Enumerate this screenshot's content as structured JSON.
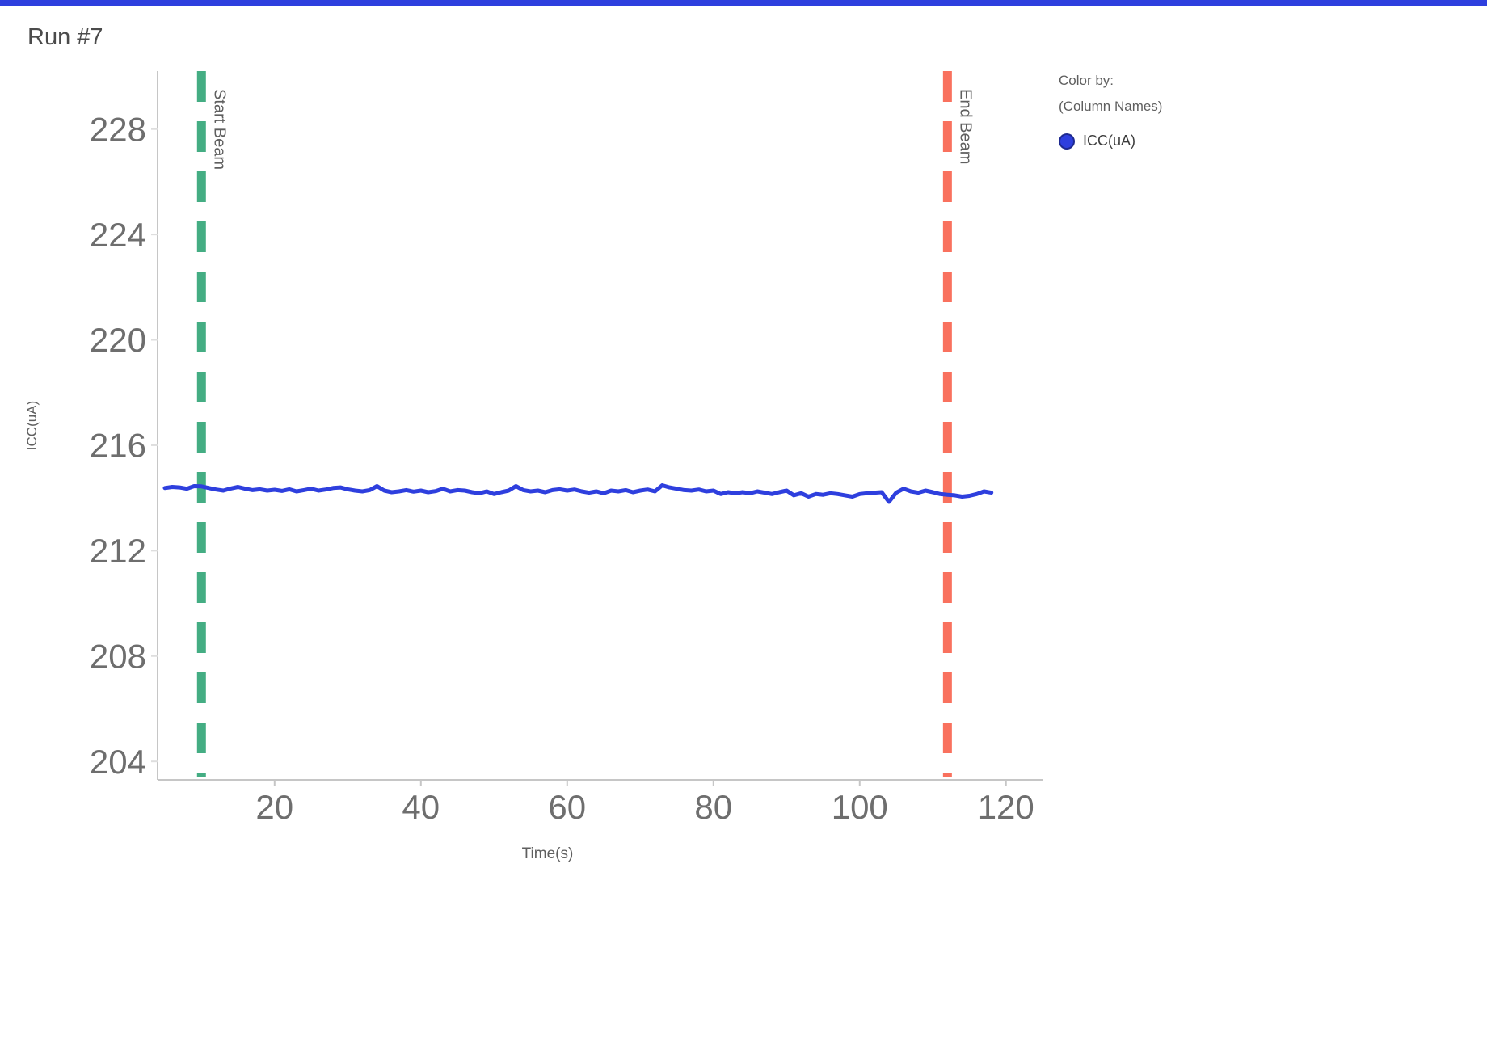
{
  "page": {
    "title": "Run #7",
    "accent_color": "#2e3fde"
  },
  "legend": {
    "color_by_label": "Color by:",
    "column_names_label": "(Column Names)",
    "items": [
      {
        "label": "ICC(uA)",
        "color": "#2e3fde"
      }
    ]
  },
  "chart_data": {
    "type": "line",
    "title": "Run #7",
    "xlabel": "Time(s)",
    "ylabel": "ICC(uA)",
    "xlim": [
      4,
      125
    ],
    "ylim": [
      203.3,
      230.2
    ],
    "xticks": [
      20,
      40,
      60,
      80,
      100,
      120
    ],
    "yticks": [
      204,
      208,
      212,
      216,
      220,
      224,
      228
    ],
    "grid": false,
    "legend_position": "top-right",
    "series": [
      {
        "name": "ICC(uA)",
        "color": "#2e3fde",
        "x": [
          5,
          6,
          7,
          8,
          9,
          10,
          11,
          12,
          13,
          14,
          15,
          16,
          17,
          18,
          19,
          20,
          21,
          22,
          23,
          24,
          25,
          26,
          27,
          28,
          29,
          30,
          31,
          32,
          33,
          34,
          35,
          36,
          37,
          38,
          39,
          40,
          41,
          42,
          43,
          44,
          45,
          46,
          47,
          48,
          49,
          50,
          51,
          52,
          53,
          54,
          55,
          56,
          57,
          58,
          59,
          60,
          61,
          62,
          63,
          64,
          65,
          66,
          67,
          68,
          69,
          70,
          71,
          72,
          73,
          74,
          75,
          76,
          77,
          78,
          79,
          80,
          81,
          82,
          83,
          84,
          85,
          86,
          87,
          88,
          89,
          90,
          91,
          92,
          93,
          94,
          95,
          96,
          97,
          98,
          99,
          100,
          101,
          102,
          103,
          104,
          105,
          106,
          107,
          108,
          109,
          110,
          111,
          112,
          113,
          114,
          115,
          116,
          117,
          118
        ],
        "y": [
          214.38,
          214.42,
          214.4,
          214.35,
          214.45,
          214.44,
          214.38,
          214.32,
          214.28,
          214.36,
          214.42,
          214.35,
          214.3,
          214.33,
          214.28,
          214.31,
          214.27,
          214.33,
          214.25,
          214.3,
          214.35,
          214.28,
          214.32,
          214.38,
          214.4,
          214.33,
          214.28,
          214.25,
          214.3,
          214.45,
          214.28,
          214.22,
          214.25,
          214.3,
          214.24,
          214.28,
          214.22,
          214.26,
          214.35,
          214.25,
          214.3,
          214.28,
          214.22,
          214.18,
          214.25,
          214.15,
          214.22,
          214.28,
          214.45,
          214.3,
          214.25,
          214.28,
          214.22,
          214.3,
          214.33,
          214.28,
          214.32,
          214.25,
          214.2,
          214.25,
          214.18,
          214.28,
          214.25,
          214.3,
          214.22,
          214.28,
          214.32,
          214.25,
          214.48,
          214.4,
          214.35,
          214.3,
          214.28,
          214.32,
          214.25,
          214.28,
          214.15,
          214.22,
          214.18,
          214.22,
          214.18,
          214.25,
          214.2,
          214.15,
          214.22,
          214.28,
          214.1,
          214.18,
          214.05,
          214.15,
          214.12,
          214.18,
          214.15,
          214.1,
          214.05,
          214.15,
          214.18,
          214.2,
          214.22,
          213.85,
          214.2,
          214.35,
          214.25,
          214.2,
          214.28,
          214.22,
          214.15,
          214.12,
          214.1,
          214.05,
          214.08,
          214.15,
          214.25,
          214.2
        ]
      }
    ],
    "annotations": [
      {
        "type": "vline",
        "x": 10,
        "label": "Start Beam",
        "color": "#44ad83",
        "style": "dashed"
      },
      {
        "type": "vline",
        "x": 112,
        "label": "End Beam",
        "color": "#f9715e",
        "style": "dashed"
      }
    ]
  }
}
